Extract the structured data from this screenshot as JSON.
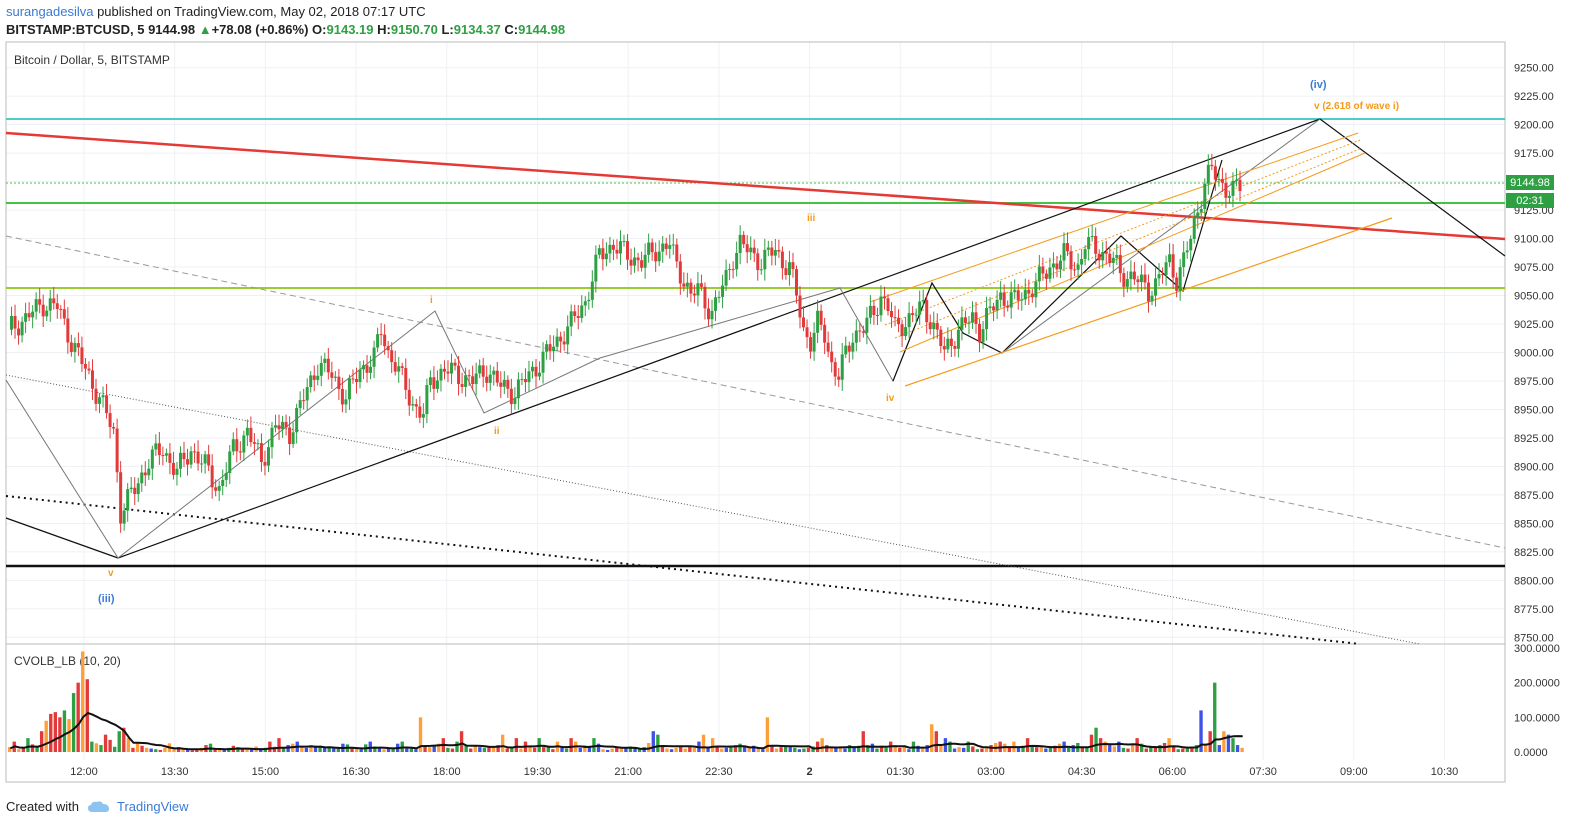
{
  "header": {
    "author": "surangadesilva",
    "published_text": " published on TradingView.com, May 02, 2018 07:17 UTC",
    "symbol": "BITSTAMP:BTCUSD, 5",
    "last": "9144.98",
    "change": "+78.08 (+0.86%)",
    "o_label": "O:",
    "o_value": "9143.19",
    "h_label": "H:",
    "h_value": "9150.70",
    "l_label": "L:",
    "l_value": "9134.37",
    "c_label": "C:",
    "c_value": "9144.98"
  },
  "footer": {
    "created_with": "Created with",
    "brand": "TradingView"
  },
  "chart_data": {
    "type": "candlestick",
    "title": "Bitcoin / Dollar, 5, BITSTAMP",
    "y_axis": {
      "min": 8740,
      "max": 9265,
      "ticks": [
        9250,
        9225,
        9200,
        9175,
        9150,
        9125,
        9100,
        9075,
        9050,
        9025,
        9000,
        8975,
        8950,
        8925,
        8900,
        8875,
        8850,
        8825,
        8800,
        8775,
        8750
      ]
    },
    "y_tick_labels": [
      "9250.00",
      "9225.00",
      "9200.00",
      "9175.00",
      "9150.00",
      "9125.00",
      "9100.00",
      "9075.00",
      "9050.00",
      "9025.00",
      "9000.00",
      "8975.00",
      "8950.00",
      "8925.00",
      "8900.00",
      "8875.00",
      "8850.00",
      "8825.00",
      "8800.00",
      "8775.00",
      "8750.00"
    ],
    "x_tick_labels": [
      "12:00",
      "13:30",
      "15:00",
      "16:30",
      "18:00",
      "19:30",
      "21:00",
      "22:30",
      "2",
      "01:30",
      "03:00",
      "04:30",
      "06:00",
      "07:30",
      "09:00",
      "10:30"
    ],
    "price_labels": {
      "last": "9144.98",
      "countdown": "02:31"
    },
    "close_path": [
      [
        0,
        9020
      ],
      [
        5,
        9030
      ],
      [
        10,
        9043
      ],
      [
        14,
        9040
      ],
      [
        18,
        9010
      ],
      [
        22,
        8985
      ],
      [
        26,
        8960
      ],
      [
        30,
        8930
      ],
      [
        32,
        8860
      ],
      [
        34,
        8870
      ],
      [
        36,
        8880
      ],
      [
        40,
        8905
      ],
      [
        44,
        8915
      ],
      [
        48,
        8895
      ],
      [
        52,
        8915
      ],
      [
        56,
        8900
      ],
      [
        60,
        8880
      ],
      [
        64,
        8915
      ],
      [
        68,
        8930
      ],
      [
        72,
        8905
      ],
      [
        76,
        8935
      ],
      [
        80,
        8930
      ],
      [
        84,
        8960
      ],
      [
        88,
        8990
      ],
      [
        92,
        8980
      ],
      [
        96,
        8960
      ],
      [
        100,
        8985
      ],
      [
        104,
        8995
      ],
      [
        106,
        9020
      ],
      [
        108,
        9000
      ],
      [
        110,
        8990
      ],
      [
        112,
        8975
      ],
      [
        115,
        8955
      ],
      [
        118,
        8945
      ],
      [
        120,
        8975
      ],
      [
        124,
        8985
      ],
      [
        128,
        8980
      ],
      [
        132,
        8975
      ],
      [
        136,
        8985
      ],
      [
        140,
        8970
      ],
      [
        144,
        8965
      ],
      [
        148,
        8980
      ],
      [
        152,
        8995
      ],
      [
        156,
        9010
      ],
      [
        160,
        9025
      ],
      [
        164,
        9045
      ],
      [
        168,
        9085
      ],
      [
        172,
        9095
      ],
      [
        176,
        9085
      ],
      [
        180,
        9080
      ],
      [
        184,
        9090
      ],
      [
        188,
        9095
      ],
      [
        190,
        9075
      ],
      [
        192,
        9065
      ],
      [
        194,
        9050
      ],
      [
        196,
        9055
      ],
      [
        198,
        9045
      ],
      [
        200,
        9035
      ],
      [
        202,
        9050
      ],
      [
        204,
        9065
      ],
      [
        206,
        9085
      ],
      [
        208,
        9095
      ],
      [
        210,
        9090
      ],
      [
        214,
        9080
      ],
      [
        218,
        9090
      ],
      [
        220,
        9080
      ],
      [
        222,
        9075
      ],
      [
        224,
        9050
      ],
      [
        226,
        9020
      ],
      [
        228,
        9010
      ],
      [
        230,
        9025
      ],
      [
        232,
        9015
      ],
      [
        234,
        8990
      ],
      [
        236,
        8980
      ],
      [
        240,
        9015
      ],
      [
        244,
        9025
      ],
      [
        246,
        9035
      ],
      [
        248,
        9050
      ],
      [
        250,
        9040
      ],
      [
        252,
        9020
      ],
      [
        256,
        9030
      ],
      [
        260,
        9040
      ],
      [
        262,
        9030
      ],
      [
        264,
        9015
      ],
      [
        266,
        9000
      ],
      [
        270,
        9020
      ],
      [
        274,
        9030
      ],
      [
        276,
        9020
      ],
      [
        280,
        9040
      ],
      [
        282,
        9050
      ],
      [
        286,
        9045
      ],
      [
        288,
        9050
      ],
      [
        292,
        9060
      ],
      [
        296,
        9075
      ],
      [
        300,
        9085
      ],
      [
        304,
        9075
      ],
      [
        306,
        9095
      ],
      [
        310,
        9090
      ],
      [
        314,
        9080
      ],
      [
        316,
        9070
      ],
      [
        320,
        9065
      ],
      [
        324,
        9055
      ],
      [
        326,
        9060
      ],
      [
        328,
        9070
      ],
      [
        330,
        9080
      ],
      [
        332,
        9065
      ],
      [
        334,
        9080
      ],
      [
        336,
        9100
      ],
      [
        338,
        9125
      ],
      [
        340,
        9150
      ],
      [
        342,
        9160
      ],
      [
        344,
        9150
      ],
      [
        346,
        9145
      ],
      [
        348,
        9142
      ],
      [
        350,
        9144.98
      ]
    ],
    "volume_axis": {
      "min": 0,
      "max": 300,
      "ticks": [
        300,
        200,
        100,
        0
      ],
      "tick_labels": [
        "300.0000",
        "200.0000",
        "100.0000",
        "0.0000"
      ]
    },
    "volume_title": "CVOLB_LB (10, 20)",
    "volume_bars": [
      14,
      30,
      8,
      12,
      40,
      22,
      18,
      60,
      90,
      110,
      115,
      100,
      120,
      95,
      170,
      200,
      290,
      210,
      30,
      25,
      20,
      50,
      35,
      15,
      60,
      70,
      40,
      12,
      26,
      18,
      12,
      10,
      8,
      6,
      12,
      25,
      10,
      14,
      8,
      6,
      5,
      10,
      12,
      20,
      24,
      10,
      8,
      6,
      12,
      18,
      14,
      8,
      10,
      8,
      16,
      10,
      12,
      30,
      15,
      40,
      12,
      20,
      24,
      30,
      14,
      12,
      20,
      18,
      16,
      12,
      14,
      10,
      12,
      24,
      22,
      12,
      10,
      8,
      22,
      30,
      16,
      12,
      8,
      10,
      12,
      24,
      30,
      10,
      12,
      8,
      100,
      16,
      14,
      20,
      24,
      40,
      12,
      10,
      30,
      60,
      20,
      10,
      16,
      14,
      12,
      14,
      12,
      20,
      50,
      10,
      14,
      40,
      10,
      30,
      16,
      12,
      40,
      14,
      18,
      8,
      30,
      12,
      10,
      40,
      30,
      12,
      20,
      18,
      40,
      24,
      8,
      6,
      10,
      14,
      12,
      14,
      16,
      12,
      10,
      14,
      26,
      60,
      50,
      16,
      10,
      8,
      12,
      16,
      10,
      14,
      12,
      30,
      50,
      12,
      40,
      16,
      10,
      12,
      14,
      20,
      24,
      16,
      12,
      18,
      10,
      8,
      100,
      20,
      10,
      14,
      18,
      14,
      12,
      8,
      10,
      12,
      16,
      30,
      40,
      20,
      14,
      12,
      16,
      10,
      20,
      12,
      18,
      60,
      20,
      24,
      10,
      16,
      12,
      30,
      20,
      12,
      14,
      8,
      30,
      18,
      10,
      20,
      80,
      60,
      18,
      40,
      30,
      10,
      14,
      12,
      30,
      16,
      8,
      10,
      12,
      20,
      26,
      30,
      24,
      12,
      30,
      16,
      18,
      40,
      20,
      14,
      16,
      10,
      12,
      18,
      24,
      30,
      12,
      20,
      26,
      16,
      12,
      50,
      70,
      40,
      30,
      20,
      16,
      30,
      12,
      10,
      20,
      40,
      24,
      10,
      14,
      12,
      20,
      26,
      40,
      16,
      8,
      10,
      14,
      12,
      20,
      120,
      20,
      60,
      200,
      20,
      60,
      50,
      40,
      20,
      12
    ]
  },
  "annotations": {
    "wave_i": "i",
    "wave_ii": "ii",
    "wave_iii": "iii",
    "wave_iv": "iv",
    "wave_v": "v",
    "wave_big_iii": "(iii)",
    "wave_big_iv": "(iv)",
    "wave_v_target": "v (2.618 of wave i)"
  },
  "colors": {
    "up": "#2ea043",
    "down": "#e23a3a",
    "vol_orange": "#ff9f3a",
    "vol_blue": "#3f51e8",
    "red_line": "#e53935",
    "teal_line": "#4ecdc4",
    "green_line": "#46c246",
    "olive_line": "#9acd32",
    "fib_orange": "#f59b1c",
    "label_blue": "#3a7bd5"
  }
}
